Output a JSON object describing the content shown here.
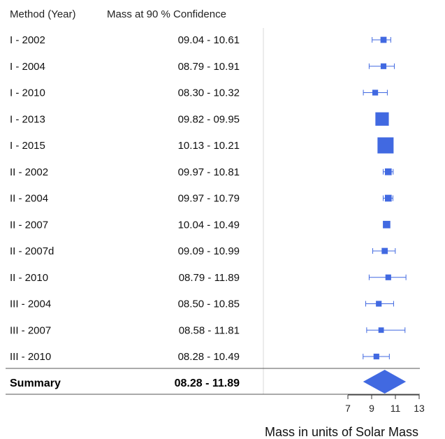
{
  "headers": {
    "method": "Method (Year)",
    "mass": "Mass at 90 % Confidence"
  },
  "rows": [
    {
      "method": "I - 2002",
      "ci_label": "09.04 - 10.61",
      "point": 10.0,
      "low": 9.04,
      "high": 10.61,
      "weight": 0.25
    },
    {
      "method": "I - 2004",
      "ci_label": "08.79 - 10.91",
      "point": 10.0,
      "low": 8.79,
      "high": 10.91,
      "weight": 0.22
    },
    {
      "method": "I - 2010",
      "ci_label": "08.30 - 10.32",
      "point": 9.3,
      "low": 8.3,
      "high": 10.32,
      "weight": 0.22
    },
    {
      "method": "I - 2013",
      "ci_label": "09.82 - 09.95",
      "point": 9.88,
      "low": 9.82,
      "high": 9.95,
      "weight": 0.8
    },
    {
      "method": "I - 2015",
      "ci_label": "10.13 - 10.21",
      "point": 10.17,
      "low": 10.13,
      "high": 10.21,
      "weight": 1.0
    },
    {
      "method": "II - 2002",
      "ci_label": "09.97 - 10.81",
      "point": 10.4,
      "low": 9.97,
      "high": 10.81,
      "weight": 0.3
    },
    {
      "method": "II - 2004",
      "ci_label": "09.97 - 10.79",
      "point": 10.4,
      "low": 9.97,
      "high": 10.79,
      "weight": 0.3
    },
    {
      "method": "II - 2007",
      "ci_label": "10.04 - 10.49",
      "point": 10.26,
      "low": 10.04,
      "high": 10.49,
      "weight": 0.35
    },
    {
      "method": "II - 2007d",
      "ci_label": "09.09 - 10.99",
      "point": 10.1,
      "low": 9.09,
      "high": 10.99,
      "weight": 0.25
    },
    {
      "method": "II - 2010",
      "ci_label": "08.79 - 11.89",
      "point": 10.4,
      "low": 8.79,
      "high": 11.89,
      "weight": 0.22
    },
    {
      "method": "III - 2004",
      "ci_label": "08.50 - 10.85",
      "point": 9.6,
      "low": 8.5,
      "high": 10.85,
      "weight": 0.22
    },
    {
      "method": "III - 2007",
      "ci_label": "08.58 - 11.81",
      "point": 9.8,
      "low": 8.58,
      "high": 11.81,
      "weight": 0.2
    },
    {
      "method": "III - 2010",
      "ci_label": "08.28 - 10.49",
      "point": 9.4,
      "low": 8.28,
      "high": 10.49,
      "weight": 0.22
    }
  ],
  "summary": {
    "label": "Summary",
    "ci_label": "08.28 - 11.89",
    "low": 8.28,
    "high": 11.89,
    "center": 10.1
  },
  "axis": {
    "min": 7,
    "max": 13,
    "ticks": [
      7,
      9,
      11,
      13
    ],
    "title": "Mass in units of Solar Mass"
  },
  "chart_data": {
    "type": "forest",
    "xlabel": "Mass in units of Solar Mass",
    "xlim": [
      7,
      13
    ],
    "categories": [
      "I - 2002",
      "I - 2004",
      "I - 2010",
      "I - 2013",
      "I - 2015",
      "II - 2002",
      "II - 2004",
      "II - 2007",
      "II - 2007d",
      "II - 2010",
      "III - 2004",
      "III - 2007",
      "III - 2010"
    ],
    "intervals": [
      [
        9.04,
        10.61
      ],
      [
        8.79,
        10.91
      ],
      [
        8.3,
        10.32
      ],
      [
        9.82,
        9.95
      ],
      [
        10.13,
        10.21
      ],
      [
        9.97,
        10.81
      ],
      [
        9.97,
        10.79
      ],
      [
        10.04,
        10.49
      ],
      [
        9.09,
        10.99
      ],
      [
        8.79,
        11.89
      ],
      [
        8.5,
        10.85
      ],
      [
        8.58,
        11.81
      ],
      [
        8.28,
        10.49
      ]
    ],
    "summary": [
      8.28,
      11.89
    ],
    "colors": {
      "marker": "#4169e1",
      "line": "#4169e1"
    }
  }
}
